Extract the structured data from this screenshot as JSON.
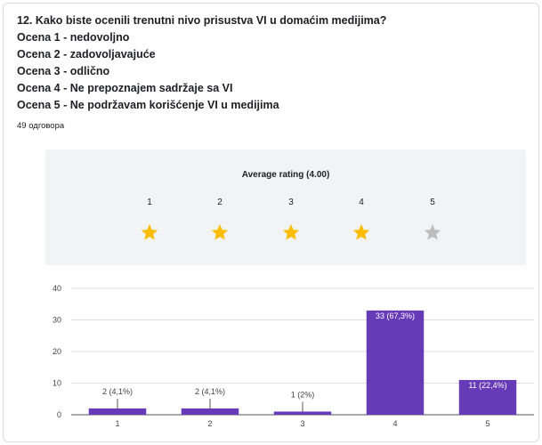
{
  "question": {
    "title": "12. Kako biste ocenili trenutni nivo prisustva VI u domaćim medijima?",
    "options": [
      "Ocena 1 - nedovoljno",
      "Ocena 2 - zadovoljavajuće",
      "Ocena 3 - odlično",
      "Ocena 4 - Ne prepoznajem sadržaje sa VI",
      "Ocena 5 - Ne podržavam korišćenje VI u medijima"
    ],
    "response_count": "49 одговора"
  },
  "rating": {
    "title": "Average rating (4.00)",
    "scale": [
      "1",
      "2",
      "3",
      "4",
      "5"
    ],
    "filled": 4,
    "star_color": "#fbbc04",
    "empty_star_color": "#bdbdbd"
  },
  "chart_data": {
    "type": "bar",
    "categories": [
      "1",
      "2",
      "3",
      "4",
      "5"
    ],
    "values": [
      2,
      2,
      1,
      33,
      11
    ],
    "labels": [
      "2 (4,1%)",
      "2 (4,1%)",
      "1 (2%)",
      "33 (67,3%)",
      "11 (22,4%)"
    ],
    "ylim": [
      0,
      40
    ],
    "yticks": [
      "0",
      "10",
      "20",
      "30",
      "40"
    ],
    "ytick_values": [
      0,
      10,
      20,
      30,
      40
    ],
    "grid": true,
    "bar_color": "#673ab7"
  }
}
